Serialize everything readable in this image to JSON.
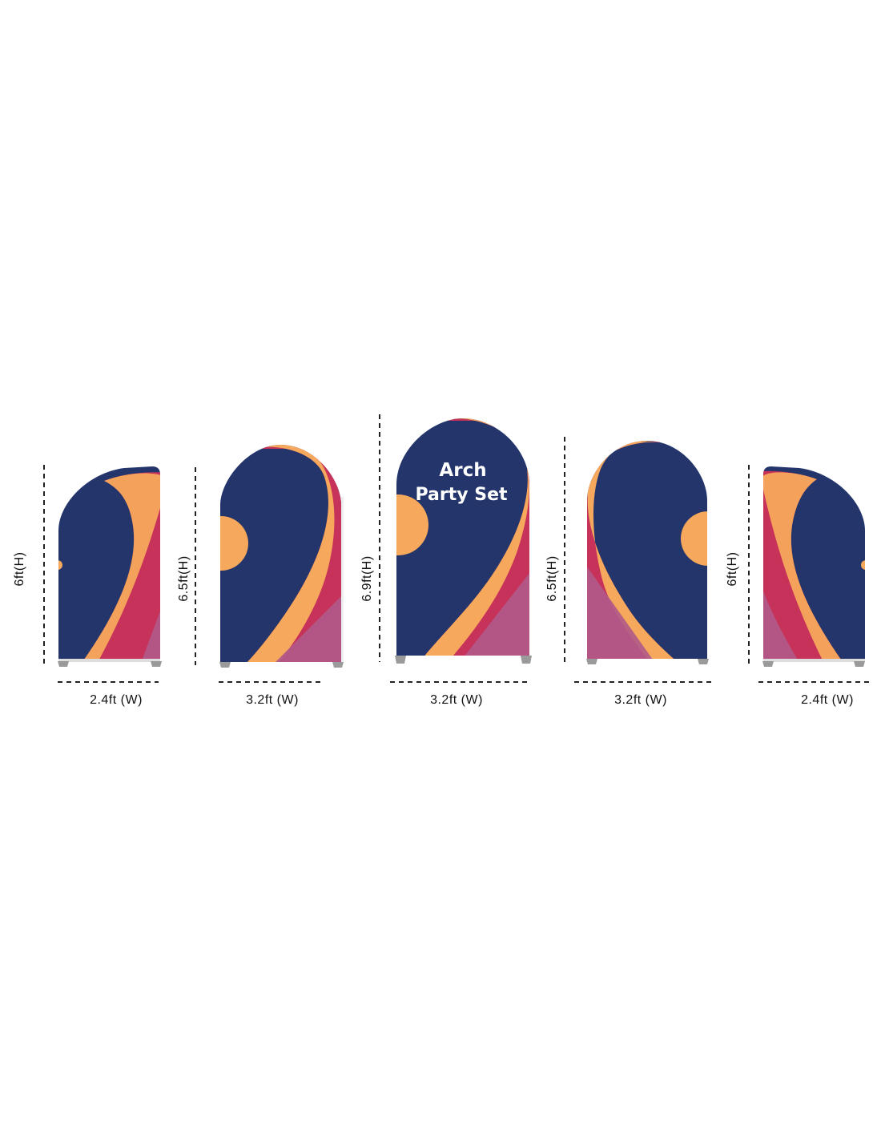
{
  "product": {
    "title_line1": "Arch",
    "title_line2": "Party Set"
  },
  "colors": {
    "navy": "#24356b",
    "orange": "#f6a85c",
    "crimson": "#c7325a",
    "magenta": "#b05a8a",
    "background": "#ffffff"
  },
  "panels": [
    {
      "name": "left-chiara-panel",
      "height_label": "6ft(H)",
      "width_label": "2.4ft (W)"
    },
    {
      "name": "left-arch-panel",
      "height_label": "6.5ft(H)",
      "width_label": "3.2ft (W)"
    },
    {
      "name": "center-arch-panel",
      "height_label": "6.9ft(H)",
      "width_label": "3.2ft (W)"
    },
    {
      "name": "right-arch-panel",
      "height_label": "6.5ft(H)",
      "width_label": "3.2ft (W)"
    },
    {
      "name": "right-chiara-panel",
      "height_label": "6ft(H)",
      "width_label": "2.4ft (W)"
    }
  ]
}
